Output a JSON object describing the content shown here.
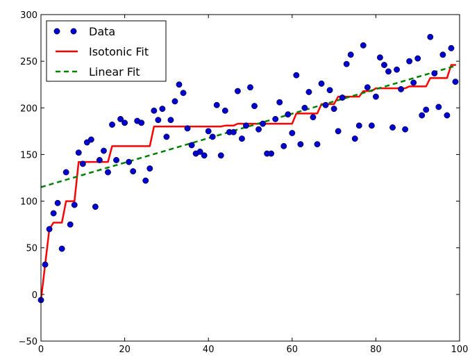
{
  "chart_data": {
    "type": "scatter",
    "title": "",
    "xlabel": "",
    "ylabel": "",
    "xlim": [
      0,
      100
    ],
    "ylim": [
      -50,
      300
    ],
    "xticks": [
      0,
      20,
      40,
      60,
      80,
      100
    ],
    "yticks": [
      -50,
      0,
      50,
      100,
      150,
      200,
      250,
      300
    ],
    "grid": false,
    "legend": {
      "location": "top-left",
      "entries": [
        {
          "label": "Data",
          "marker": "circle",
          "color": "#0000cc"
        },
        {
          "label": "Isotonic Fit",
          "line": "solid",
          "color": "#ff0000"
        },
        {
          "label": "Linear Fit",
          "line": "dashed",
          "color": "#008000"
        }
      ]
    },
    "series": [
      {
        "name": "Data",
        "kind": "scatter",
        "color": "#0000cc",
        "x": [
          0,
          1,
          2,
          3,
          4,
          5,
          6,
          7,
          8,
          9,
          10,
          11,
          12,
          13,
          14,
          15,
          16,
          17,
          18,
          19,
          20,
          21,
          22,
          23,
          24,
          25,
          26,
          27,
          28,
          29,
          30,
          31,
          32,
          33,
          34,
          35,
          36,
          37,
          38,
          39,
          40,
          41,
          42,
          43,
          44,
          45,
          46,
          47,
          48,
          49,
          50,
          51,
          52,
          53,
          54,
          55,
          56,
          57,
          58,
          59,
          60,
          61,
          62,
          63,
          64,
          65,
          66,
          67,
          68,
          69,
          70,
          71,
          72,
          73,
          74,
          75,
          76,
          77,
          78,
          79,
          80,
          81,
          82,
          83,
          84,
          85,
          86,
          87,
          88,
          89,
          90,
          91,
          92,
          93,
          94,
          95,
          96,
          97,
          98,
          99
        ],
        "y": [
          -6,
          32,
          70,
          87,
          98,
          49,
          131,
          75,
          96,
          152,
          140,
          163,
          166,
          94,
          144,
          154,
          131,
          182,
          144,
          188,
          184,
          142,
          132,
          186,
          184,
          122,
          135,
          197,
          187,
          199,
          169,
          187,
          207,
          225,
          216,
          178,
          160,
          151,
          153,
          149,
          175,
          169,
          203,
          149,
          197,
          174,
          174,
          218,
          167,
          181,
          222,
          202,
          177,
          183,
          151,
          151,
          188,
          206,
          159,
          193,
          173,
          235,
          161,
          200,
          217,
          190,
          161,
          226,
          203,
          219,
          199,
          175,
          211,
          247,
          257,
          167,
          181,
          267,
          222,
          181,
          212,
          254,
          246,
          239,
          179,
          241,
          220,
          177,
          250,
          227,
          253,
          192,
          198,
          276,
          237,
          201,
          257,
          192,
          264,
          228
        ]
      },
      {
        "name": "Isotonic Fit",
        "kind": "line",
        "color": "#ff0000",
        "x": [
          0,
          1,
          2,
          3,
          4,
          5,
          6,
          7,
          8,
          9,
          10,
          11,
          12,
          13,
          14,
          15,
          16,
          17,
          18,
          19,
          20,
          21,
          22,
          23,
          24,
          25,
          26,
          27,
          28,
          29,
          30,
          31,
          32,
          33,
          34,
          35,
          36,
          37,
          38,
          39,
          40,
          41,
          42,
          43,
          44,
          45,
          46,
          47,
          48,
          49,
          50,
          51,
          52,
          53,
          54,
          55,
          56,
          57,
          58,
          59,
          60,
          61,
          62,
          63,
          64,
          65,
          66,
          67,
          68,
          69,
          70,
          71,
          72,
          73,
          74,
          75,
          76,
          77,
          78,
          79,
          80,
          81,
          82,
          83,
          84,
          85,
          86,
          87,
          88,
          89,
          90,
          91,
          92,
          93,
          94,
          95,
          96,
          97,
          98,
          99
        ],
        "y": [
          -6,
          32,
          70,
          77,
          77,
          77,
          100,
          100,
          100,
          142,
          142,
          142,
          142,
          142,
          142,
          142,
          142,
          159,
          159,
          159,
          159,
          159,
          159,
          159,
          159,
          159,
          159,
          180,
          180,
          180,
          180,
          180,
          180,
          180,
          180,
          180,
          180,
          180,
          180,
          180,
          180,
          180,
          180,
          180,
          181,
          181,
          181,
          183,
          183,
          183,
          183,
          183,
          183,
          183,
          183,
          183,
          183,
          183,
          183,
          183,
          183,
          194,
          194,
          194,
          194,
          194,
          194,
          204,
          204,
          204,
          204,
          212,
          212,
          212,
          212,
          212,
          212,
          218,
          218,
          218,
          221,
          221,
          221,
          221,
          221,
          221,
          221,
          221,
          223,
          223,
          223,
          223,
          223,
          232,
          232,
          232,
          232,
          232,
          246,
          246
        ]
      },
      {
        "name": "Linear Fit",
        "kind": "line",
        "style": "dashed",
        "color": "#008000",
        "x": [
          0,
          99
        ],
        "y": [
          115,
          245
        ]
      }
    ]
  }
}
